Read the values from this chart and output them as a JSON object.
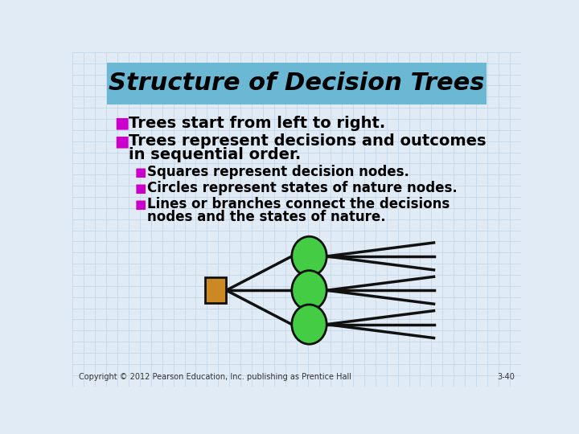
{
  "title": "Structure of Decision Trees",
  "title_bg_color": "#6BB8D4",
  "title_font_size": 22,
  "bg_color": "#E0EBF5",
  "grid_color": "#C5D8E8",
  "bullet_color": "#CC00CC",
  "text_color": "#000000",
  "bullet1": "Trees start from left to right.",
  "bullet2_line1": "Trees represent decisions and outcomes",
  "bullet2_line2": "in sequential order.",
  "sub_bullet1": "Squares represent decision nodes.",
  "sub_bullet2": "Circles represent states of nature nodes.",
  "sub_bullet3_line1": "Lines or branches connect the decisions",
  "sub_bullet3_line2": "nodes and the states of nature.",
  "square_color": "#CC8822",
  "circle_color": "#44CC44",
  "line_color": "#111111",
  "footer_text": "Copyright © 2012 Pearson Education, Inc. publishing as Prentice Hall",
  "footer_right": "3-40",
  "main_bullet_size": 14,
  "main_text_size": 14,
  "sub_bullet_size": 11,
  "sub_text_size": 12
}
